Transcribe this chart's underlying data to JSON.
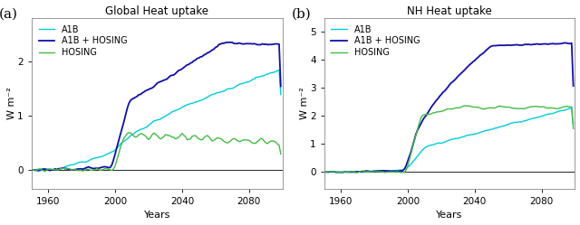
{
  "panel_a": {
    "title": "Global Heat uptake",
    "label": "(a)",
    "ylabel": "W m⁻²",
    "xlabel": "Years",
    "xlim": [
      1950,
      2100
    ],
    "ylim": [
      -0.35,
      2.8
    ],
    "yticks": [
      0.0,
      1.0,
      2.0
    ],
    "xticks": [
      1960,
      2000,
      2040,
      2080
    ],
    "legend": [
      "A1B",
      "A1B + HOSING",
      "HOSING"
    ],
    "colors": {
      "A1B": "#00CCDD",
      "A1B+HOSING": "#1010AA",
      "HOSING": "#44BB44"
    }
  },
  "panel_b": {
    "title": "NH Heat uptake",
    "label": "(b)",
    "ylabel": "W m⁻²",
    "xlabel": "Years",
    "xlim": [
      1950,
      2100
    ],
    "ylim": [
      -0.6,
      5.5
    ],
    "yticks": [
      0.0,
      1.0,
      2.0,
      3.0,
      4.0,
      5.0
    ],
    "xticks": [
      1960,
      2000,
      2040,
      2080
    ],
    "legend": [
      "A1B",
      "A1B + HOSING",
      "HOSING"
    ],
    "colors": {
      "A1B": "#00CCDD",
      "A1B+HOSING": "#1010AA",
      "HOSING": "#44BB44"
    }
  },
  "background_color": "#ffffff",
  "fig_background": "#ffffff"
}
